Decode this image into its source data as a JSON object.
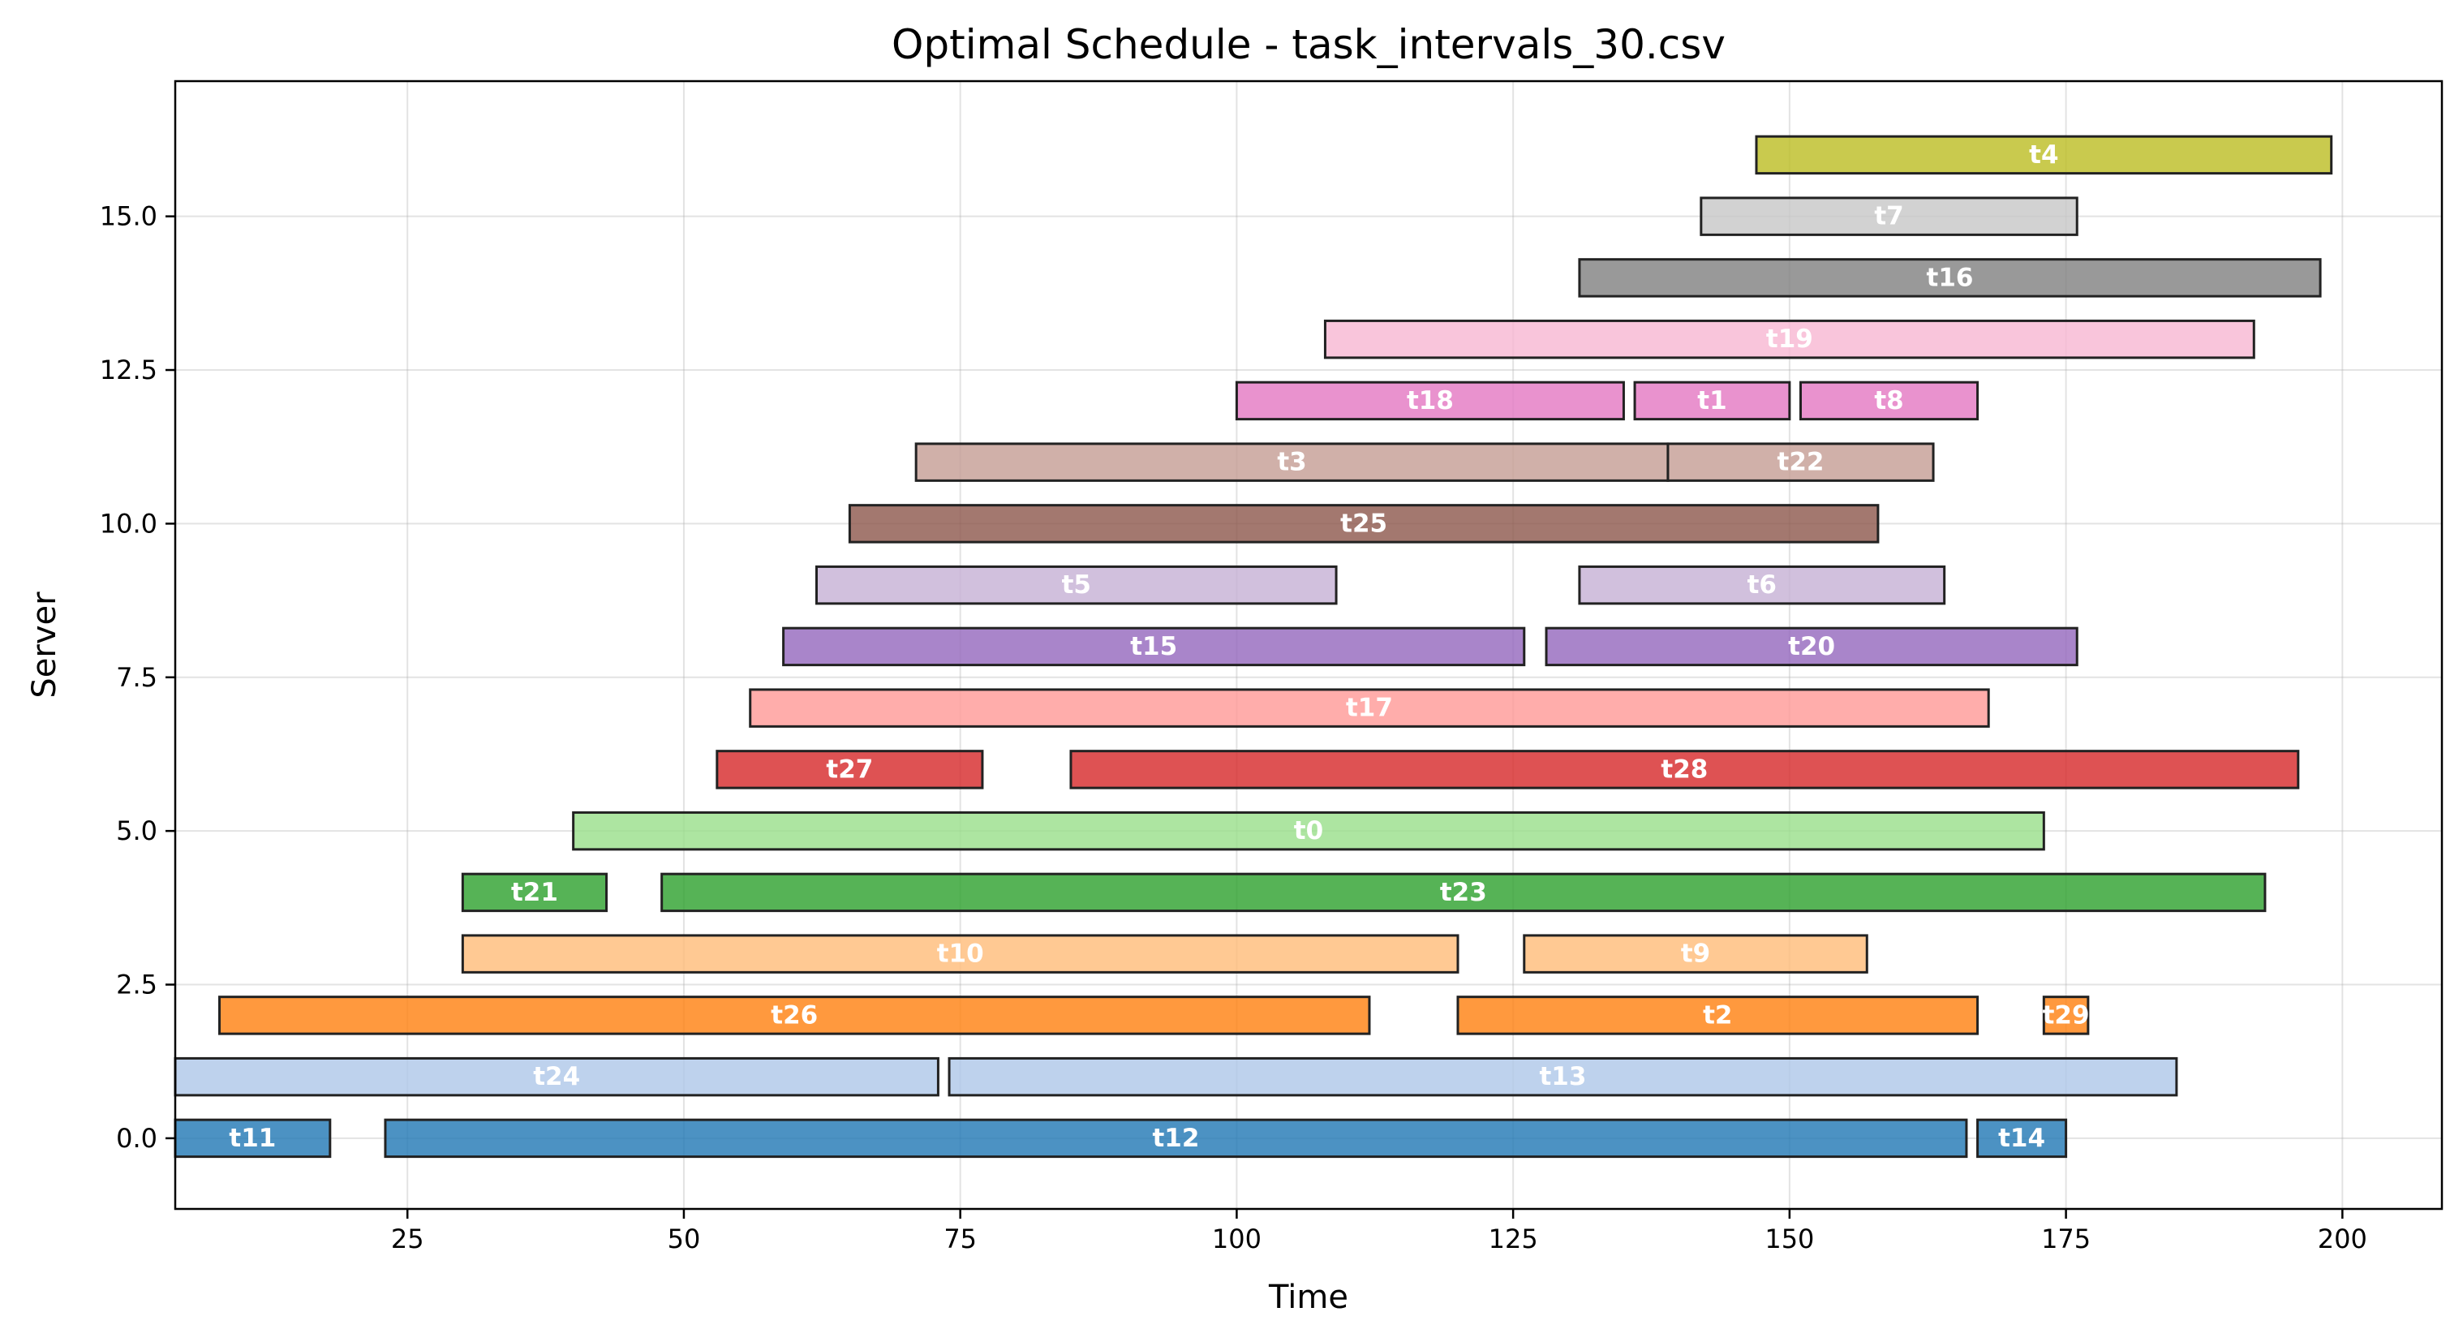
{
  "chart_data": {
    "type": "gantt",
    "title": "Optimal Schedule - task_intervals_30.csv",
    "xlabel": "Time",
    "ylabel": "Server",
    "xlim": [
      4,
      209
    ],
    "ylim": [
      -1.15,
      17.2
    ],
    "x_ticks": [
      25,
      50,
      75,
      100,
      125,
      150,
      175,
      200
    ],
    "x_tick_labels": [
      "25",
      "50",
      "75",
      "100",
      "125",
      "150",
      "175",
      "200"
    ],
    "y_ticks": [
      0,
      2.5,
      5,
      7.5,
      10,
      12.5,
      15
    ],
    "y_tick_labels": [
      "0.0",
      "2.5",
      "5.0",
      "7.5",
      "10.0",
      "12.5",
      "15.0"
    ],
    "grid": true,
    "legend": "none",
    "tasks": [
      {
        "name": "t11",
        "server": 0,
        "start": 4,
        "end": 18,
        "color": "#1f77b4"
      },
      {
        "name": "t12",
        "server": 0,
        "start": 23,
        "end": 166,
        "color": "#1f77b4"
      },
      {
        "name": "t14",
        "server": 0,
        "start": 167,
        "end": 175,
        "color": "#1f77b4"
      },
      {
        "name": "t24",
        "server": 1,
        "start": 4,
        "end": 73,
        "color": "#aec7e8"
      },
      {
        "name": "t13",
        "server": 1,
        "start": 74,
        "end": 185,
        "color": "#aec7e8"
      },
      {
        "name": "t26",
        "server": 2,
        "start": 8,
        "end": 112,
        "color": "#ff7f0e"
      },
      {
        "name": "t2",
        "server": 2,
        "start": 120,
        "end": 167,
        "color": "#ff7f0e"
      },
      {
        "name": "t29",
        "server": 2,
        "start": 173,
        "end": 177,
        "color": "#ff7f0e"
      },
      {
        "name": "t10",
        "server": 3,
        "start": 30,
        "end": 120,
        "color": "#ffbb78"
      },
      {
        "name": "t9",
        "server": 3,
        "start": 126,
        "end": 157,
        "color": "#ffbb78"
      },
      {
        "name": "t21",
        "server": 4,
        "start": 30,
        "end": 43,
        "color": "#2ca02c"
      },
      {
        "name": "t23",
        "server": 4,
        "start": 48,
        "end": 193,
        "color": "#2ca02c"
      },
      {
        "name": "t0",
        "server": 5,
        "start": 40,
        "end": 173,
        "color": "#98df8a"
      },
      {
        "name": "t27",
        "server": 6,
        "start": 53,
        "end": 77,
        "color": "#d62728"
      },
      {
        "name": "t28",
        "server": 6,
        "start": 85,
        "end": 196,
        "color": "#d62728"
      },
      {
        "name": "t17",
        "server": 7,
        "start": 56,
        "end": 168,
        "color": "#ff9896"
      },
      {
        "name": "t15",
        "server": 8,
        "start": 59,
        "end": 126,
        "color": "#9467bd"
      },
      {
        "name": "t20",
        "server": 8,
        "start": 128,
        "end": 176,
        "color": "#9467bd"
      },
      {
        "name": "t5",
        "server": 9,
        "start": 62,
        "end": 109,
        "color": "#c5b0d5"
      },
      {
        "name": "t6",
        "server": 9,
        "start": 131,
        "end": 164,
        "color": "#c5b0d5"
      },
      {
        "name": "t25",
        "server": 10,
        "start": 65,
        "end": 158,
        "color": "#8c564b"
      },
      {
        "name": "t3",
        "server": 11,
        "start": 71,
        "end": 139,
        "color": "#c49c94"
      },
      {
        "name": "t22",
        "server": 11,
        "start": 139,
        "end": 163,
        "color": "#c49c94"
      },
      {
        "name": "t18",
        "server": 12,
        "start": 100,
        "end": 135,
        "color": "#e377c2"
      },
      {
        "name": "t1",
        "server": 12,
        "start": 136,
        "end": 150,
        "color": "#e377c2"
      },
      {
        "name": "t8",
        "server": 12,
        "start": 151,
        "end": 167,
        "color": "#e377c2"
      },
      {
        "name": "t19",
        "server": 13,
        "start": 108,
        "end": 192,
        "color": "#f7b6d2"
      },
      {
        "name": "t16",
        "server": 14,
        "start": 131,
        "end": 198,
        "color": "#7f7f7f"
      },
      {
        "name": "t7",
        "server": 15,
        "start": 142,
        "end": 176,
        "color": "#c7c7c7"
      },
      {
        "name": "t4",
        "server": 16,
        "start": 147,
        "end": 199,
        "color": "#bcbd22"
      }
    ]
  }
}
